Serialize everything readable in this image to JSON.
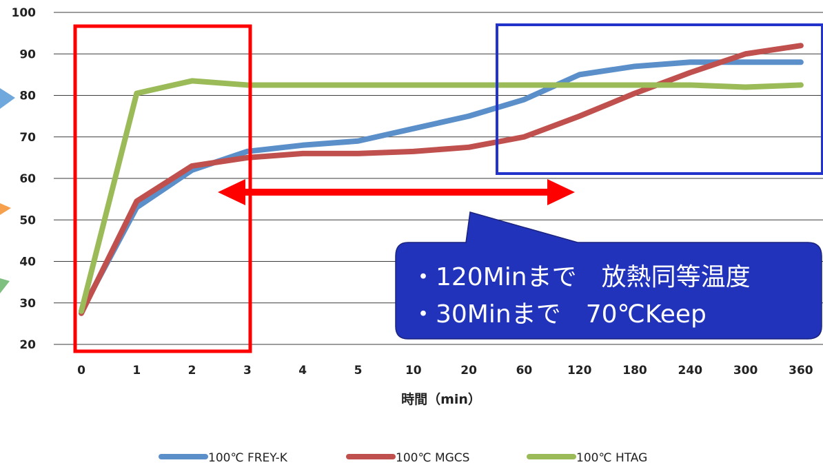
{
  "chart_data": {
    "type": "line",
    "xlabel": "時間（min）",
    "ylabel": "",
    "ylim": [
      20,
      100
    ],
    "yticks": [
      "20",
      "30",
      "40",
      "50",
      "60",
      "70",
      "80",
      "90",
      "100"
    ],
    "categories": [
      "0",
      "1",
      "2",
      "3",
      "4",
      "5",
      "10",
      "20",
      "60",
      "120",
      "180",
      "240",
      "300",
      "360"
    ],
    "grid": true,
    "legend_position": "bottom",
    "series": [
      {
        "name": "100℃ FREY-K",
        "color": "#5b8fc9",
        "values": [
          28,
          53,
          62,
          66.5,
          68,
          69,
          72,
          75,
          79,
          85,
          87,
          88,
          88,
          88
        ]
      },
      {
        "name": "100℃ MGCS",
        "color": "#c0504d",
        "values": [
          27.5,
          54.5,
          63,
          65,
          66,
          66,
          66.5,
          67.5,
          70,
          75,
          80.5,
          85.5,
          90,
          92
        ]
      },
      {
        "name": "100℃ HTAG",
        "color": "#9bbb59",
        "values": [
          28,
          80.5,
          83.5,
          82.5,
          82.5,
          82.5,
          82.5,
          82.5,
          82.5,
          82.5,
          82.5,
          82.5,
          82,
          82.5
        ]
      }
    ],
    "callout": {
      "line1": "・120Minまで　放熱同等温度",
      "line2": "・30Minまで　70℃Keep",
      "fill": "#2233bb"
    },
    "highlights": {
      "red_box_color": "#ff0000",
      "blue_box_color": "#2233cc",
      "arrow_color": "#ff0000"
    }
  }
}
